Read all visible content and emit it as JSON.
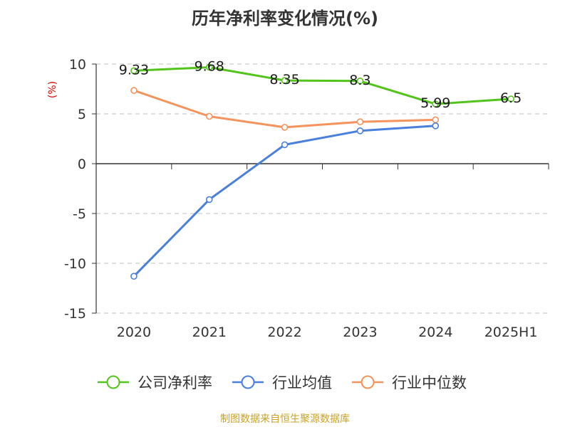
{
  "chart_data": {
    "type": "line",
    "title": "历年净利率变化情况(%)",
    "ylabel": "(%)",
    "xlabel": "",
    "categories": [
      "2020",
      "2021",
      "2022",
      "2023",
      "2024",
      "2025H1"
    ],
    "ylim": [
      -15,
      10
    ],
    "yticks": [
      10,
      5,
      0,
      -5,
      -10,
      -15
    ],
    "grid": true,
    "legend_position": "bottom",
    "series": [
      {
        "name": "公司净利率",
        "color": "#52c41a",
        "values": [
          9.33,
          9.68,
          8.35,
          8.3,
          5.99,
          6.5
        ],
        "labels": [
          "9.33",
          "9.68",
          "8.35",
          "8.3",
          "5.99",
          "6.5"
        ]
      },
      {
        "name": "行业均值",
        "color": "#4a7fdb",
        "values": [
          -11.3,
          -3.6,
          1.9,
          3.3,
          3.8,
          null
        ]
      },
      {
        "name": "行业中位数",
        "color": "#f4935b",
        "values": [
          7.35,
          4.75,
          3.65,
          4.2,
          4.4,
          null
        ]
      }
    ]
  },
  "source": "制图数据来自恒生聚源数据库"
}
